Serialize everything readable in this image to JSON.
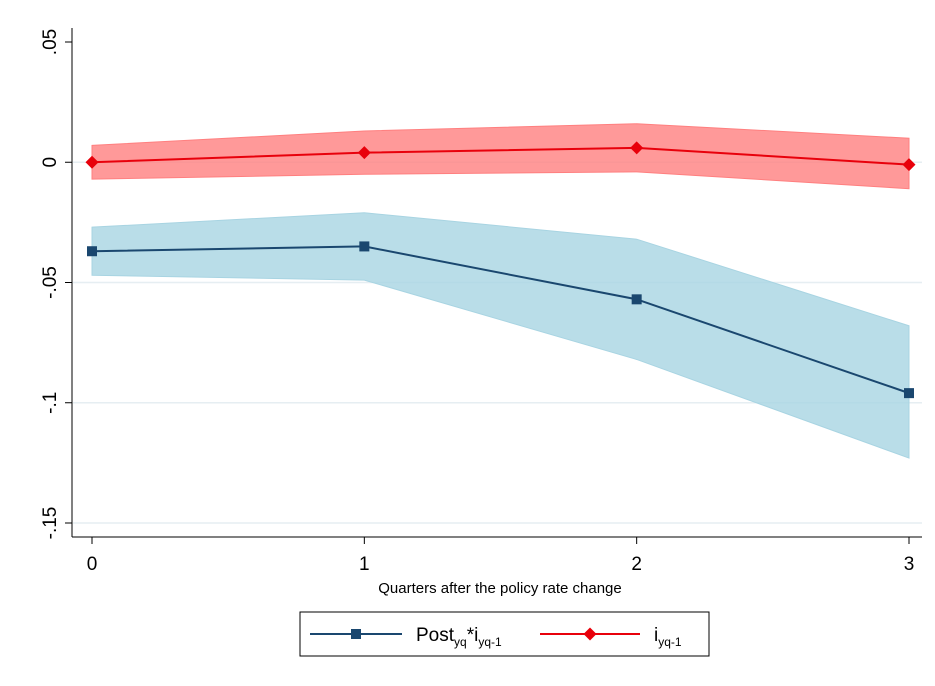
{
  "chart_data": {
    "type": "line",
    "title": "",
    "xlabel": "Quarters after the policy rate change",
    "ylabel": "",
    "x": [
      0,
      1,
      2,
      3
    ],
    "xlim": [
      0,
      3
    ],
    "ylim": [
      -0.15,
      0.05
    ],
    "x_ticks": [
      {
        "value": 0,
        "label": "0"
      },
      {
        "value": 1,
        "label": "1"
      },
      {
        "value": 2,
        "label": "2"
      },
      {
        "value": 3,
        "label": "3"
      }
    ],
    "y_ticks": [
      {
        "value": 0.05,
        "label": ".05"
      },
      {
        "value": 0,
        "label": "0"
      },
      {
        "value": -0.05,
        "label": "-.05"
      },
      {
        "value": -0.1,
        "label": "-.1"
      },
      {
        "value": -0.15,
        "label": "-.15"
      }
    ],
    "grid": "horizontal",
    "legend_position": "bottom",
    "series": [
      {
        "name_main": "Post",
        "name_sub1": "yq",
        "name_mid": "*i",
        "name_sub2": "yq-1",
        "color": "#1a476f",
        "band_color": "#a8d4e2",
        "marker": "square",
        "values": [
          -0.037,
          -0.035,
          -0.057,
          -0.096
        ],
        "ci_lower": [
          -0.047,
          -0.049,
          -0.082,
          -0.123
        ],
        "ci_upper": [
          -0.027,
          -0.021,
          -0.032,
          -0.068
        ]
      },
      {
        "name_main": "i",
        "name_sub1": "yq-1",
        "name_mid": "",
        "name_sub2": "",
        "color": "#e8000b",
        "band_color": "#ff7f7f",
        "marker": "diamond",
        "values": [
          0.0,
          0.004,
          0.006,
          -0.001
        ],
        "ci_lower": [
          -0.007,
          -0.005,
          -0.004,
          -0.011
        ],
        "ci_upper": [
          0.007,
          0.013,
          0.016,
          0.01
        ]
      }
    ]
  }
}
